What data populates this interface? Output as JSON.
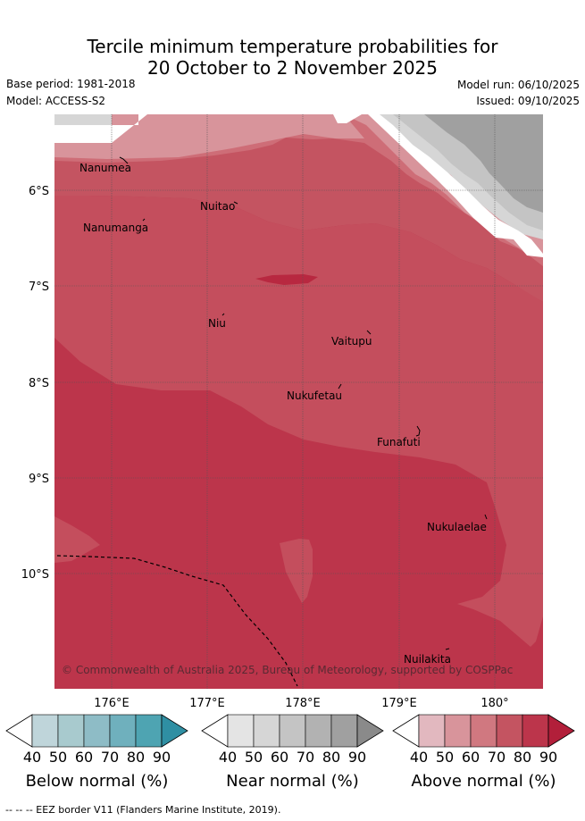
{
  "title": {
    "line1": "Tercile minimum temperature probabilities for",
    "line2": "20 October to 2 November 2025"
  },
  "meta": {
    "base_period": "Base period: 1981-2018",
    "model": "Model: ACCESS-S2",
    "model_run": "Model run: 06/10/2025",
    "issued": "Issued: 09/10/2025"
  },
  "axes": {
    "lat_ticks": [
      "6°S",
      "7°S",
      "8°S",
      "9°S",
      "10°S"
    ],
    "lon_ticks": [
      "176°E",
      "177°E",
      "178°E",
      "179°E",
      "180°"
    ]
  },
  "places": [
    {
      "name": "Nanumea"
    },
    {
      "name": "Nuitao"
    },
    {
      "name": "Nanumanga"
    },
    {
      "name": "Niu"
    },
    {
      "name": "Vaitupu"
    },
    {
      "name": "Nukufetau"
    },
    {
      "name": "Funafuti"
    },
    {
      "name": "Nukulaelae"
    },
    {
      "name": "Nuilakita"
    }
  ],
  "copyright": "© Commonwealth of Australia 2025, Bureau of Meteorology, supported by COSPPac",
  "colorbars": [
    {
      "title": "Below normal (%)",
      "ticks": [
        "40",
        "50",
        "60",
        "70",
        "80",
        "90"
      ],
      "colors": [
        "#bfd5da",
        "#a8cace",
        "#8ebcc6",
        "#6fb0bd",
        "#4ea4b2",
        "#2f8fa3"
      ]
    },
    {
      "title": "Near normal (%)",
      "ticks": [
        "40",
        "50",
        "60",
        "70",
        "80",
        "90"
      ],
      "colors": [
        "#e4e4e4",
        "#d6d6d6",
        "#c4c4c4",
        "#b2b2b2",
        "#a0a0a0",
        "#8a8a8a"
      ]
    },
    {
      "title": "Above normal (%)",
      "ticks": [
        "40",
        "50",
        "60",
        "70",
        "80",
        "90"
      ],
      "colors": [
        "#e2b8bf",
        "#d8949b",
        "#d07880",
        "#c45461",
        "#bc354b",
        "#b21f3a"
      ]
    }
  ],
  "footnote": "--  --  -- EEZ border V11 (Flanders Marine Institute, 2019)."
}
